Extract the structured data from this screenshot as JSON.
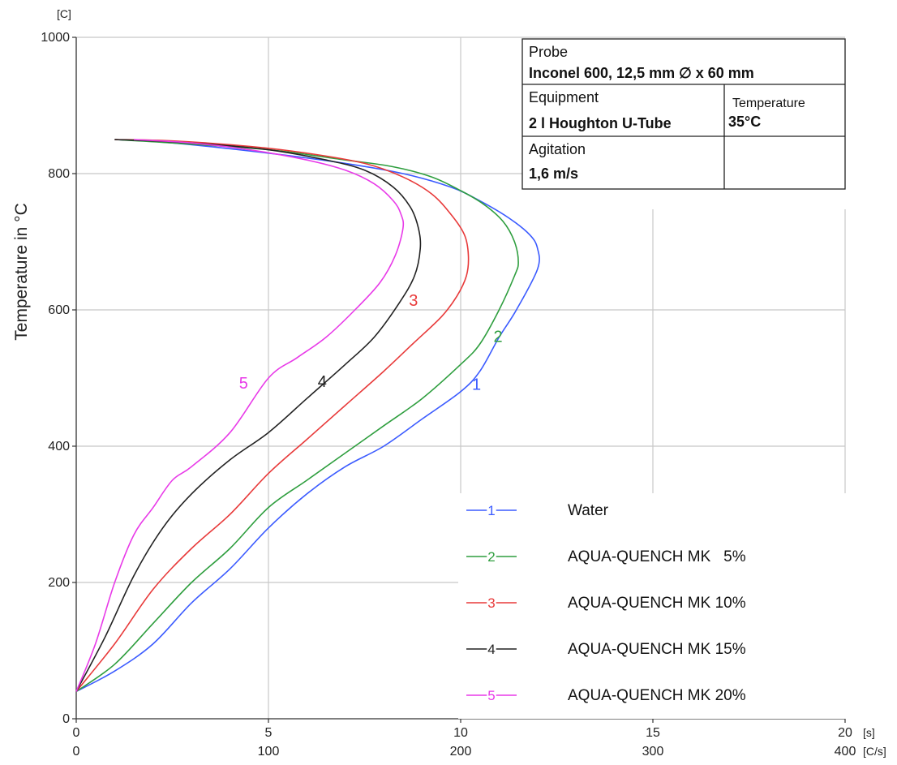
{
  "chart_data": {
    "type": "line",
    "title": "",
    "ylabel": "Temperature in °C",
    "y_unit": "[C]",
    "x_unit_time": "[s]",
    "x_unit_rate": "[C/s]",
    "ylim": [
      0,
      1000
    ],
    "y_ticks": [
      "0",
      "200",
      "400",
      "600",
      "800",
      "1000"
    ],
    "x_time_ticks": [
      "0",
      "5",
      "10",
      "15",
      "20"
    ],
    "x_rate_ticks": [
      "0",
      "100",
      "200",
      "300",
      "400"
    ],
    "xlim_rate": [
      0,
      400
    ],
    "grid": true,
    "legend_position": "bottom-right",
    "info_box": {
      "probe_label": "Probe",
      "probe_value": "Inconel 600, 12,5 mm ∅ x 60 mm",
      "equipment_label": "Equipment",
      "equipment_value": "2 l Houghton U-Tube",
      "temperature_label": "Temperature",
      "temperature_value": "35°C",
      "agitation_label": "Agitation",
      "agitation_value": "1,6 m/s"
    },
    "series": [
      {
        "name": "Water",
        "number": "1",
        "color": "#3b5bff",
        "x_cooling_rate": [
          0,
          20,
          40,
          60,
          80,
          100,
          120,
          140,
          160,
          180,
          200,
          210,
          220,
          229,
          240,
          240,
          236,
          225,
          210,
          195,
          170,
          140,
          100,
          50,
          20
        ],
        "y_temperature": [
          40,
          70,
          110,
          170,
          220,
          280,
          330,
          370,
          400,
          440,
          480,
          510,
          560,
          600,
          660,
          690,
          710,
          735,
          760,
          780,
          800,
          815,
          830,
          845,
          850
        ]
      },
      {
        "name": "AQUA-QUENCH MK   5%",
        "number": "2",
        "color": "#2e9e3e",
        "x_cooling_rate": [
          0,
          20,
          40,
          60,
          80,
          100,
          120,
          140,
          160,
          180,
          200,
          210,
          220,
          228,
          230,
          228,
          222,
          212,
          200,
          185,
          165,
          140,
          100,
          50,
          20
        ],
        "y_temperature": [
          40,
          80,
          140,
          200,
          250,
          310,
          350,
          390,
          430,
          470,
          520,
          550,
          600,
          650,
          670,
          700,
          730,
          755,
          775,
          795,
          810,
          820,
          835,
          845,
          850
        ]
      },
      {
        "name": "AQUA-QUENCH MK 10%",
        "number": "3",
        "color": "#e83a3a",
        "x_cooling_rate": [
          0,
          20,
          40,
          60,
          80,
          100,
          120,
          140,
          160,
          175,
          190,
          198,
          203,
          204,
          202,
          195,
          185,
          170,
          150,
          120,
          90,
          50,
          20
        ],
        "y_temperature": [
          40,
          110,
          190,
          250,
          300,
          360,
          410,
          460,
          510,
          550,
          590,
          620,
          650,
          680,
          710,
          740,
          770,
          795,
          815,
          830,
          840,
          848,
          850
        ]
      },
      {
        "name": "AQUA-QUENCH MK 15%",
        "number": "4",
        "color": "#222222",
        "x_cooling_rate": [
          0,
          15,
          30,
          45,
          60,
          80,
          100,
          120,
          140,
          155,
          168,
          176,
          179,
          178,
          174,
          165,
          150,
          130,
          100,
          70,
          40,
          20
        ],
        "y_temperature": [
          40,
          120,
          210,
          280,
          330,
          380,
          420,
          470,
          520,
          560,
          610,
          650,
          690,
          720,
          750,
          780,
          805,
          820,
          835,
          843,
          848,
          850
        ]
      },
      {
        "name": "AQUA-QUENCH MK 20%",
        "number": "5",
        "color": "#e83ae8",
        "x_cooling_rate": [
          0,
          10,
          20,
          30,
          40,
          50,
          60,
          80,
          100,
          115,
          130,
          145,
          158,
          166,
          170,
          169,
          165,
          155,
          140,
          120,
          90,
          60,
          30
        ],
        "y_temperature": [
          40,
          110,
          200,
          270,
          310,
          350,
          370,
          420,
          500,
          530,
          560,
          600,
          640,
          680,
          720,
          740,
          760,
          785,
          805,
          820,
          835,
          845,
          850
        ]
      }
    ]
  }
}
